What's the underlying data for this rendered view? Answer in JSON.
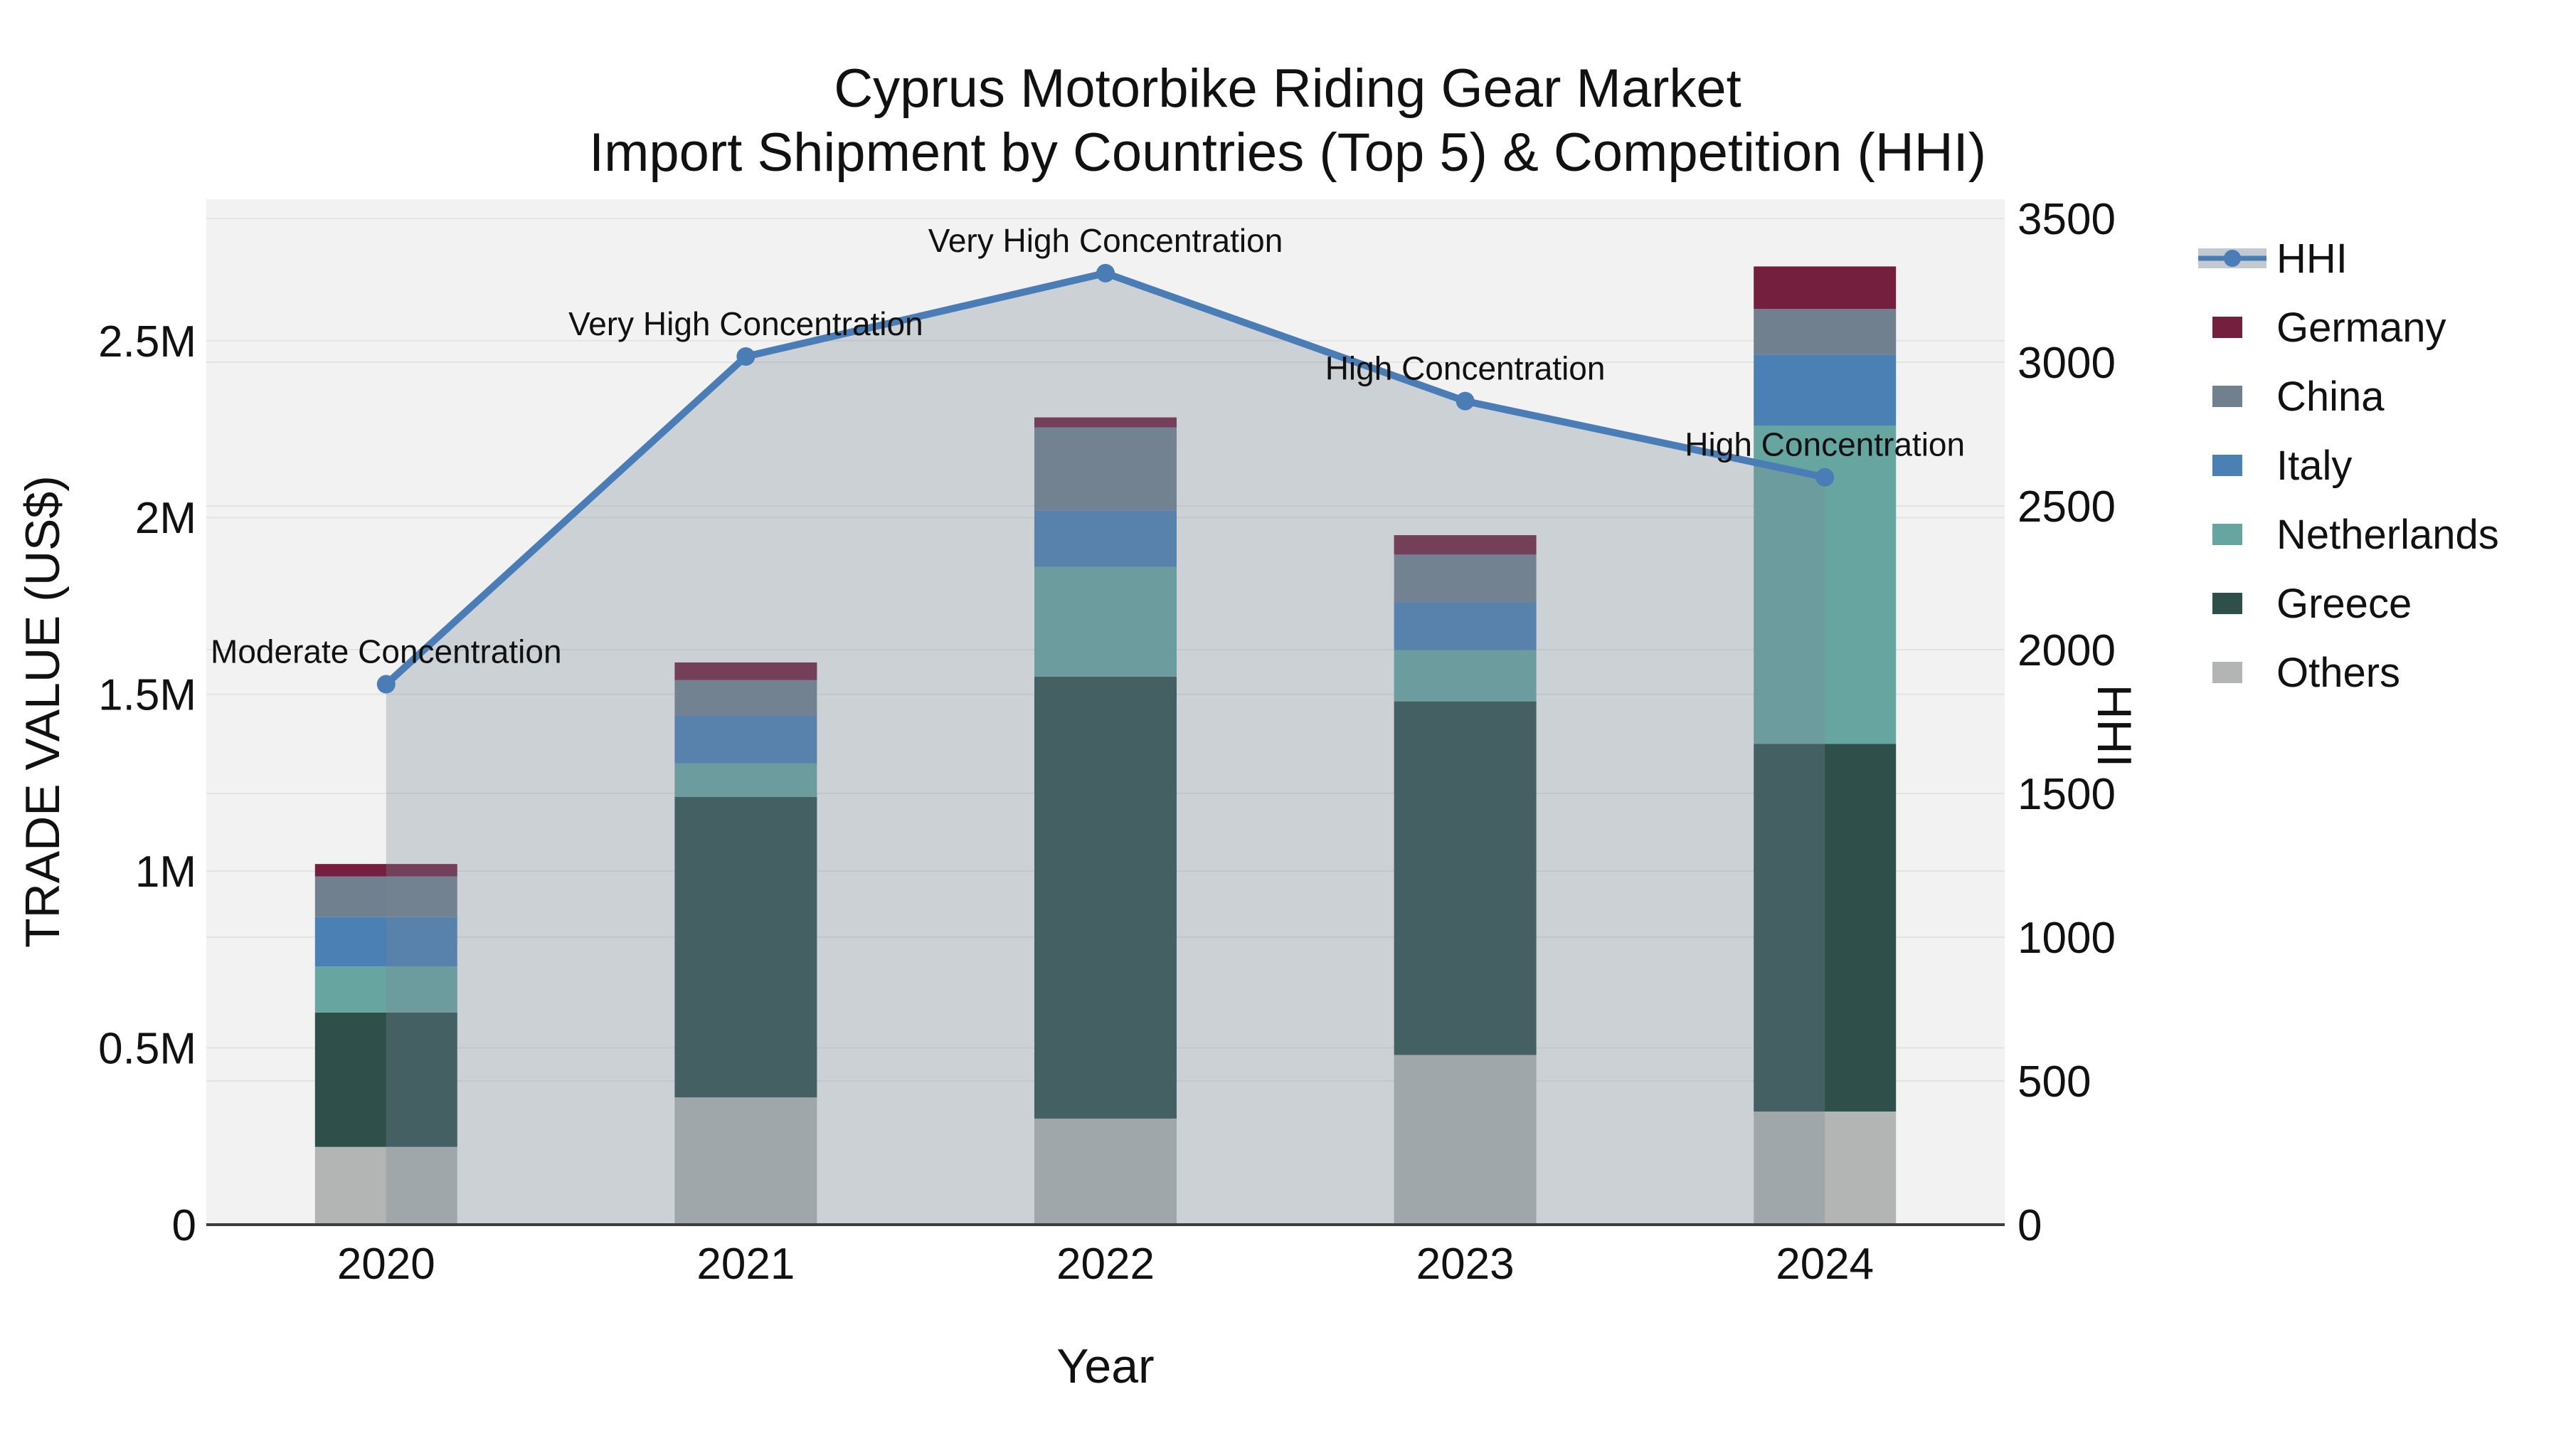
{
  "title": {
    "line1": "Cyprus Motorbike Riding Gear Market",
    "line2": "Import Shipment by Countries (Top 5) & Competition (HHI)"
  },
  "chart_data": {
    "type": "bar+line",
    "subtype": "stacked-bar-with-secondary-line",
    "categories": [
      "2020",
      "2021",
      "2022",
      "2023",
      "2024"
    ],
    "bar_series": [
      {
        "name": "Germany",
        "color": "#731f3d",
        "values": [
          35000,
          50000,
          28000,
          55000,
          120000
        ]
      },
      {
        "name": "China",
        "color": "#71808f",
        "values": [
          115000,
          100000,
          235000,
          135000,
          130000
        ]
      },
      {
        "name": "Italy",
        "color": "#4a80b4",
        "values": [
          140000,
          135000,
          160000,
          135000,
          200000
        ]
      },
      {
        "name": "Netherlands",
        "color": "#67a5a0",
        "values": [
          130000,
          95000,
          310000,
          145000,
          900000
        ]
      },
      {
        "name": "Greece",
        "color": "#2f4f4b",
        "values": [
          380000,
          850000,
          1250000,
          1000000,
          1040000
        ]
      },
      {
        "name": "Others",
        "color": "#b3b5b4",
        "values": [
          220000,
          360000,
          300000,
          480000,
          320000
        ]
      }
    ],
    "bar_totals": [
      1020000,
      1590000,
      2283000,
      1950000,
      2710000
    ],
    "line_series": {
      "name": "HHI",
      "color": "#4a7db5",
      "fill_color": "rgba(119,136,153,0.31)",
      "values": [
        1880,
        3020,
        3310,
        2865,
        2600
      ]
    },
    "annotations": [
      "Moderate Concentration",
      "Very High Concentration",
      "Very High Concentration",
      "High Concentration",
      "High Concentration"
    ],
    "xlabel": "Year",
    "ylabel": "TRADE VALUE (US$)",
    "y2label": "HHI",
    "y_ticks": [
      {
        "v": 0,
        "label": "0"
      },
      {
        "v": 500000,
        "label": "0.5M"
      },
      {
        "v": 1000000,
        "label": "1M"
      },
      {
        "v": 1500000,
        "label": "1.5M"
      },
      {
        "v": 2000000,
        "label": "2M"
      },
      {
        "v": 2500000,
        "label": "2.5M"
      }
    ],
    "y2_ticks": [
      {
        "v": 0,
        "label": "0"
      },
      {
        "v": 500,
        "label": "500"
      },
      {
        "v": 1000,
        "label": "1000"
      },
      {
        "v": 1500,
        "label": "1500"
      },
      {
        "v": 2000,
        "label": "2000"
      },
      {
        "v": 2500,
        "label": "2500"
      },
      {
        "v": 3000,
        "label": "3000"
      },
      {
        "v": 3500,
        "label": "3500"
      }
    ],
    "y_range": [
      0,
      2900000
    ],
    "y2_range": [
      0,
      3567
    ],
    "grid": true,
    "plot_bg": "#f2f2f2",
    "grid_color": "#e3e3e3",
    "axisline_color": "#3c3c3c",
    "legend_position": "right",
    "legend_items": [
      "HHI",
      "Germany",
      "China",
      "Italy",
      "Netherlands",
      "Greece",
      "Others"
    ]
  }
}
